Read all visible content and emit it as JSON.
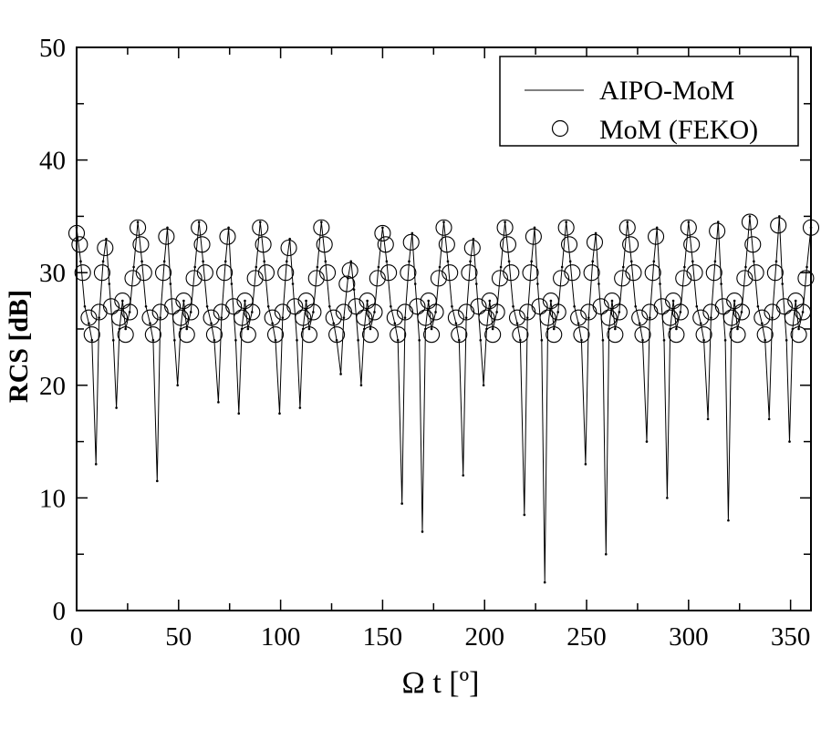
{
  "chart_data": {
    "type": "line",
    "xlabel": "Ω t [º]",
    "ylabel": "RCS [dB]",
    "xlim": [
      0,
      360
    ],
    "ylim": [
      0,
      50
    ],
    "xticks": [
      "0",
      "50",
      "100",
      "150",
      "200",
      "250",
      "300",
      "350"
    ],
    "yticks": [
      "0",
      "10",
      "20",
      "30",
      "40",
      "50"
    ],
    "legend_position": "top-right",
    "grid": false,
    "series": [
      {
        "name": "AIPO-MoM",
        "style": "line",
        "x": [
          0,
          2,
          4,
          6,
          7.5,
          9.5,
          11,
          13,
          14.5,
          16,
          18,
          19.5,
          21,
          22.5,
          24,
          26,
          28,
          30,
          32,
          34,
          36,
          37.5,
          39.5,
          41,
          43,
          44.5,
          46,
          48,
          49.5,
          51,
          52.5,
          54,
          56,
          58,
          60,
          62,
          64,
          66,
          67.5,
          69.5,
          71,
          73,
          74.5,
          76,
          78,
          79.5,
          81,
          82.5,
          84,
          86,
          88,
          90,
          92,
          94,
          96,
          97.5,
          99.5,
          101,
          103,
          104.5,
          106,
          108,
          109.5,
          111,
          112.5,
          114,
          116,
          118,
          120,
          122,
          124,
          126,
          127.5,
          129.5,
          131,
          133,
          134.5,
          136,
          138,
          139.5,
          141,
          142.5,
          144,
          146,
          148,
          150,
          152,
          154,
          156,
          157.5,
          159.5,
          161,
          163,
          164.5,
          166,
          168,
          169.5,
          171,
          172.5,
          174,
          176,
          178,
          180,
          182,
          184,
          186,
          187.5,
          189.5,
          191,
          193,
          194.5,
          196,
          198,
          199.5,
          201,
          202.5,
          204,
          206,
          208,
          210,
          212,
          214,
          216,
          217.5,
          219.5,
          221,
          223,
          224.5,
          226,
          228,
          229.5,
          231,
          232.5,
          234,
          236,
          238,
          240,
          242,
          244,
          246,
          247.5,
          249.5,
          251,
          253,
          254.5,
          256,
          258,
          259.5,
          261,
          262.5,
          264,
          266,
          268,
          270,
          272,
          274,
          276,
          277.5,
          279.5,
          281,
          283,
          284.5,
          286,
          288,
          289.5,
          291,
          292.5,
          294,
          296,
          298,
          300,
          302,
          304,
          306,
          307.5,
          309.5,
          311,
          313,
          314.5,
          316,
          318,
          319.5,
          321,
          322.5,
          324,
          326,
          328,
          330,
          332,
          334,
          336,
          337.5,
          339.5,
          341,
          343,
          344.5,
          346,
          348,
          349.5,
          351,
          352.5,
          354,
          356,
          358,
          360
        ],
        "y": [
          34,
          31,
          27,
          25.5,
          24,
          13,
          26,
          31,
          33,
          29,
          24,
          18,
          25,
          27.5,
          25,
          26.5,
          30.5,
          34.5,
          31,
          27,
          25.5,
          24,
          11.5,
          26,
          31,
          34,
          29,
          24,
          20,
          25,
          27.5,
          25,
          26.5,
          30.5,
          34.5,
          31,
          27,
          25.5,
          24,
          18.5,
          26,
          31,
          34,
          29,
          24,
          17.5,
          25,
          27.5,
          25,
          26.5,
          30.5,
          34.5,
          31,
          27,
          25.5,
          24,
          17.5,
          26,
          31,
          33,
          29,
          24,
          18,
          25,
          27.5,
          25,
          26.5,
          30.5,
          34.5,
          31,
          27,
          25.5,
          24,
          21,
          26,
          29.5,
          31,
          28.5,
          24,
          20,
          25,
          27.5,
          25,
          26.5,
          30.5,
          34,
          31,
          27,
          25.5,
          24,
          9.5,
          26,
          31,
          33.5,
          29,
          24,
          7,
          25,
          27.5,
          25,
          26.5,
          30.5,
          34.5,
          31,
          27,
          25.5,
          24,
          12,
          26,
          31,
          33,
          29,
          24,
          20,
          25,
          27.5,
          25,
          26.5,
          30.5,
          34.5,
          31,
          27,
          25.5,
          24,
          8.5,
          26,
          31,
          34,
          29,
          24,
          2.5,
          25,
          27.5,
          25,
          26.5,
          30.5,
          34.5,
          31,
          27,
          25.5,
          24,
          13,
          26,
          31,
          33.5,
          29,
          24,
          5,
          25,
          27.5,
          25,
          26.5,
          30.5,
          34.5,
          31,
          27,
          25.5,
          24,
          15,
          26,
          31,
          34,
          29,
          24,
          10,
          25,
          27.5,
          25,
          26.5,
          30.5,
          34.5,
          31,
          27,
          25.5,
          24,
          17,
          26,
          31,
          34.5,
          29,
          24,
          8,
          25,
          27.5,
          25,
          26.5,
          30.5,
          35,
          31,
          27,
          25.5,
          24,
          17,
          26,
          31,
          35,
          29,
          24,
          15,
          25,
          27.5,
          25,
          26.5,
          30.5,
          34
        ]
      },
      {
        "name": "MoM (FEKO)",
        "style": "circle",
        "x": [
          0,
          1.5,
          3,
          6,
          7.5,
          11,
          12.5,
          14,
          17,
          21,
          22.5,
          24,
          26,
          27.5,
          30,
          31.5,
          33,
          36,
          37.5,
          41,
          42.5,
          44,
          47,
          51,
          52.5,
          54,
          56,
          57.5,
          60,
          61.5,
          63,
          66,
          67.5,
          71,
          72.5,
          74,
          77,
          81,
          82.5,
          84,
          86,
          87.5,
          90,
          91.5,
          93,
          96,
          97.5,
          101,
          102.5,
          104,
          107,
          111,
          112.5,
          114,
          116,
          117.5,
          120,
          121.5,
          123,
          126,
          127.5,
          131,
          132.5,
          134,
          137,
          141,
          142.5,
          144,
          146,
          147.5,
          150,
          151.5,
          153,
          156,
          157.5,
          161,
          162.5,
          164,
          167,
          171,
          172.5,
          174,
          176,
          177.5,
          180,
          181.5,
          183,
          186,
          187.5,
          191,
          192.5,
          194,
          197,
          201,
          202.5,
          204,
          206,
          207.5,
          210,
          211.5,
          213,
          216,
          217.5,
          221,
          222.5,
          224,
          227,
          231,
          232.5,
          234,
          236,
          237.5,
          240,
          241.5,
          243,
          246,
          247.5,
          251,
          252.5,
          254,
          257,
          261,
          262.5,
          264,
          266,
          267.5,
          270,
          271.5,
          273,
          276,
          277.5,
          281,
          282.5,
          284,
          287,
          291,
          292.5,
          294,
          296,
          297.5,
          300,
          301.5,
          303,
          306,
          307.5,
          311,
          312.5,
          314,
          317,
          321,
          322.5,
          324,
          326,
          327.5,
          330,
          331.5,
          333,
          336,
          337.5,
          341,
          342.5,
          344,
          347,
          351,
          352.5,
          354,
          356,
          357.5,
          360
        ],
        "y": [
          33.5,
          32.5,
          30,
          26,
          24.5,
          26.5,
          30,
          32.2,
          27,
          26,
          27.5,
          24.5,
          26.5,
          29.5,
          34,
          32.5,
          30,
          26,
          24.5,
          26.5,
          30,
          33.2,
          27,
          26,
          27.5,
          24.5,
          26.5,
          29.5,
          34,
          32.5,
          30,
          26,
          24.5,
          26.5,
          30,
          33.2,
          27,
          26,
          27.5,
          24.5,
          26.5,
          29.5,
          34,
          32.5,
          30,
          26,
          24.5,
          26.5,
          30,
          32.2,
          27,
          26,
          27.5,
          24.5,
          26.5,
          29.5,
          34,
          32.5,
          30,
          26,
          24.5,
          26.5,
          29,
          30.2,
          27,
          26,
          27.5,
          24.5,
          26.5,
          29.5,
          33.5,
          32.5,
          30,
          26,
          24.5,
          26.5,
          30,
          32.7,
          27,
          26,
          27.5,
          24.5,
          26.5,
          29.5,
          34,
          32.5,
          30,
          26,
          24.5,
          26.5,
          30,
          32.2,
          27,
          26,
          27.5,
          24.5,
          26.5,
          29.5,
          34,
          32.5,
          30,
          26,
          24.5,
          26.5,
          30,
          33.2,
          27,
          26,
          27.5,
          24.5,
          26.5,
          29.5,
          34,
          32.5,
          30,
          26,
          24.5,
          26.5,
          30,
          32.7,
          27,
          26,
          27.5,
          24.5,
          26.5,
          29.5,
          34,
          32.5,
          30,
          26,
          24.5,
          26.5,
          30,
          33.2,
          27,
          26,
          27.5,
          24.5,
          26.5,
          29.5,
          34,
          32.5,
          30,
          26,
          24.5,
          26.5,
          30,
          33.7,
          27,
          26,
          27.5,
          24.5,
          26.5,
          29.5,
          34.5,
          32.5,
          30,
          26,
          24.5,
          26.5,
          30,
          34.2,
          27,
          26,
          27.5,
          24.5,
          26.5,
          29.5,
          34
        ]
      }
    ]
  }
}
